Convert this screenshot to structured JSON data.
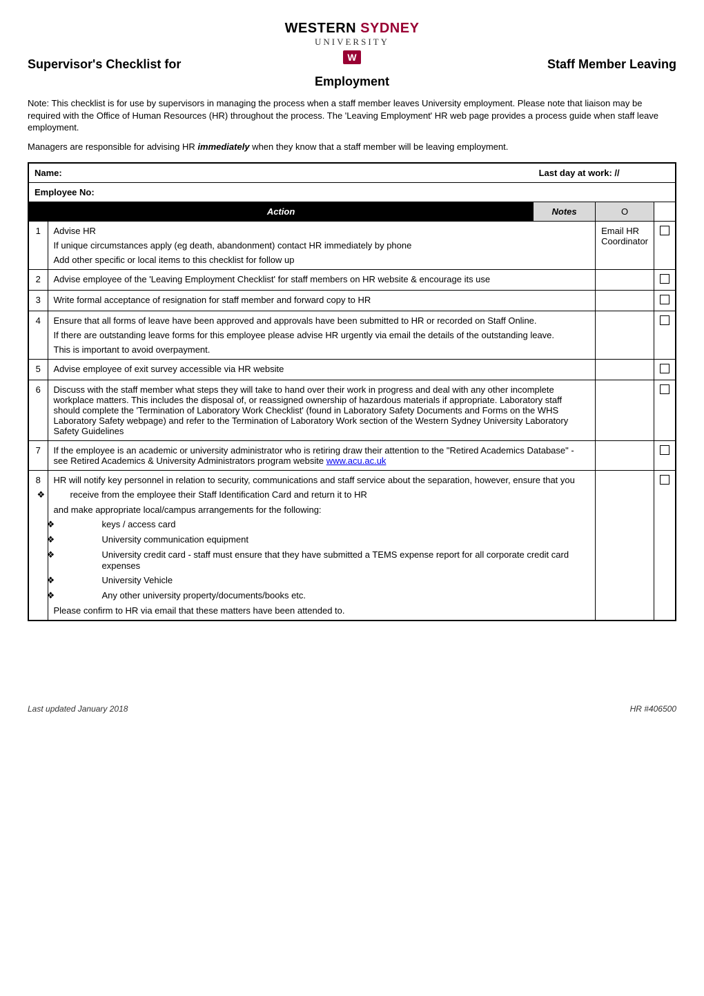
{
  "logo": {
    "line1_a": "WESTERN ",
    "line1_b": "SYDNEY",
    "line2": "UNIVERSITY",
    "badge": "W",
    "red_color": "#990033"
  },
  "title": {
    "left": "Supervisor's Checklist for",
    "right": "Staff Member Leaving",
    "center": "Employment"
  },
  "intro": {
    "p1": "Note: This checklist is for use by supervisors in managing the process when a staff member leaves University employment.  Please note that liaison may be required with the Office of Human Resources (HR) throughout the process. The 'Leaving Employment' HR web page provides a process guide when staff leave employment.",
    "p2_a": "Managers are responsible for advising HR ",
    "p2_em": "immediately",
    "p2_b": " when they know that a staff member will be leaving employment."
  },
  "fields": {
    "name_label": "Name:",
    "lastday_label": "Last day at work",
    "lastday_value": ": //",
    "empno_label": "Employee No:"
  },
  "headers": {
    "action": "Action",
    "notes": "Notes",
    "check": "O"
  },
  "rows": [
    {
      "num": "1",
      "action_html": [
        {
          "t": "p",
          "v": "Advise HR"
        },
        {
          "t": "p",
          "v": "If unique circumstances apply (eg death, abandonment) contact HR immediately by phone"
        },
        {
          "t": "p",
          "v": "Add other specific or local items to this checklist for follow up"
        }
      ],
      "notes": "Email HR Coordinator"
    },
    {
      "num": "2",
      "action_html": [
        {
          "t": "p",
          "v": "Advise employee of the 'Leaving Employment Checklist' for staff members on HR website & encourage its use"
        }
      ],
      "notes": ""
    },
    {
      "num": "3",
      "action_html": [
        {
          "t": "p",
          "v": "Write formal acceptance of resignation for staff member and forward copy to HR"
        }
      ],
      "notes": ""
    },
    {
      "num": "4",
      "action_html": [
        {
          "t": "p",
          "v": "Ensure that all forms of leave have been approved and approvals have been submitted to HR or recorded on Staff Online."
        },
        {
          "t": "p",
          "v": "If there are outstanding leave forms for this employee please advise HR urgently via email the details of the outstanding leave."
        },
        {
          "t": "p",
          "v": "This is important to avoid overpayment."
        }
      ],
      "notes": ""
    },
    {
      "num": "5",
      "action_html": [
        {
          "t": "p",
          "v": "Advise employee of exit survey accessible via HR website"
        }
      ],
      "notes": ""
    },
    {
      "num": "6",
      "action_html": [
        {
          "t": "p",
          "v": "Discuss with the staff member what steps they will take to hand over their work in progress and deal with any other incomplete workplace matters.  This includes the disposal of, or reassigned ownership of hazardous materials if appropriate. Laboratory staff should complete the 'Termination of Laboratory Work Checklist' (found in Laboratory Safety Documents and Forms on the WHS Laboratory Safety webpage) and refer to the Termination of Laboratory Work section of the Western Sydney University Laboratory Safety Guidelines"
        }
      ],
      "notes": ""
    },
    {
      "num": "7",
      "action_html": [
        {
          "t": "p_link",
          "v": "If the employee is an academic or university administrator who is retiring draw their attention to the \"Retired Academics Database\" - see Retired Academics & University Administrators program website ",
          "link_text": "www.acu.ac.uk",
          "link_href": "#"
        }
      ],
      "notes": ""
    },
    {
      "num": "8",
      "action_html": [
        {
          "t": "p",
          "v": "HR will notify key personnel in relation to security, communications and staff service about the separation, however, ensure that you"
        },
        {
          "t": "bullet",
          "v": "receive from the employee their Staff Identification Card and return it to HR"
        },
        {
          "t": "p",
          "v": "and make appropriate local/campus arrangements for the following:"
        },
        {
          "t": "bullet_indent",
          "v": "keys / access card"
        },
        {
          "t": "bullet_indent",
          "v": "University communication equipment"
        },
        {
          "t": "bullet_indent",
          "v": "University credit card  - staff must ensure that they have submitted a TEMS expense report for all corporate credit card expenses"
        },
        {
          "t": "bullet_indent",
          "v": "University Vehicle"
        },
        {
          "t": "bullet_indent",
          "v": "Any other university property/documents/books etc."
        },
        {
          "t": "p",
          "v": "Please confirm to HR via email that these matters have been attended to."
        }
      ],
      "notes": ""
    }
  ],
  "footer": {
    "left": "Last updated January 2018",
    "right": "HR #406500"
  }
}
